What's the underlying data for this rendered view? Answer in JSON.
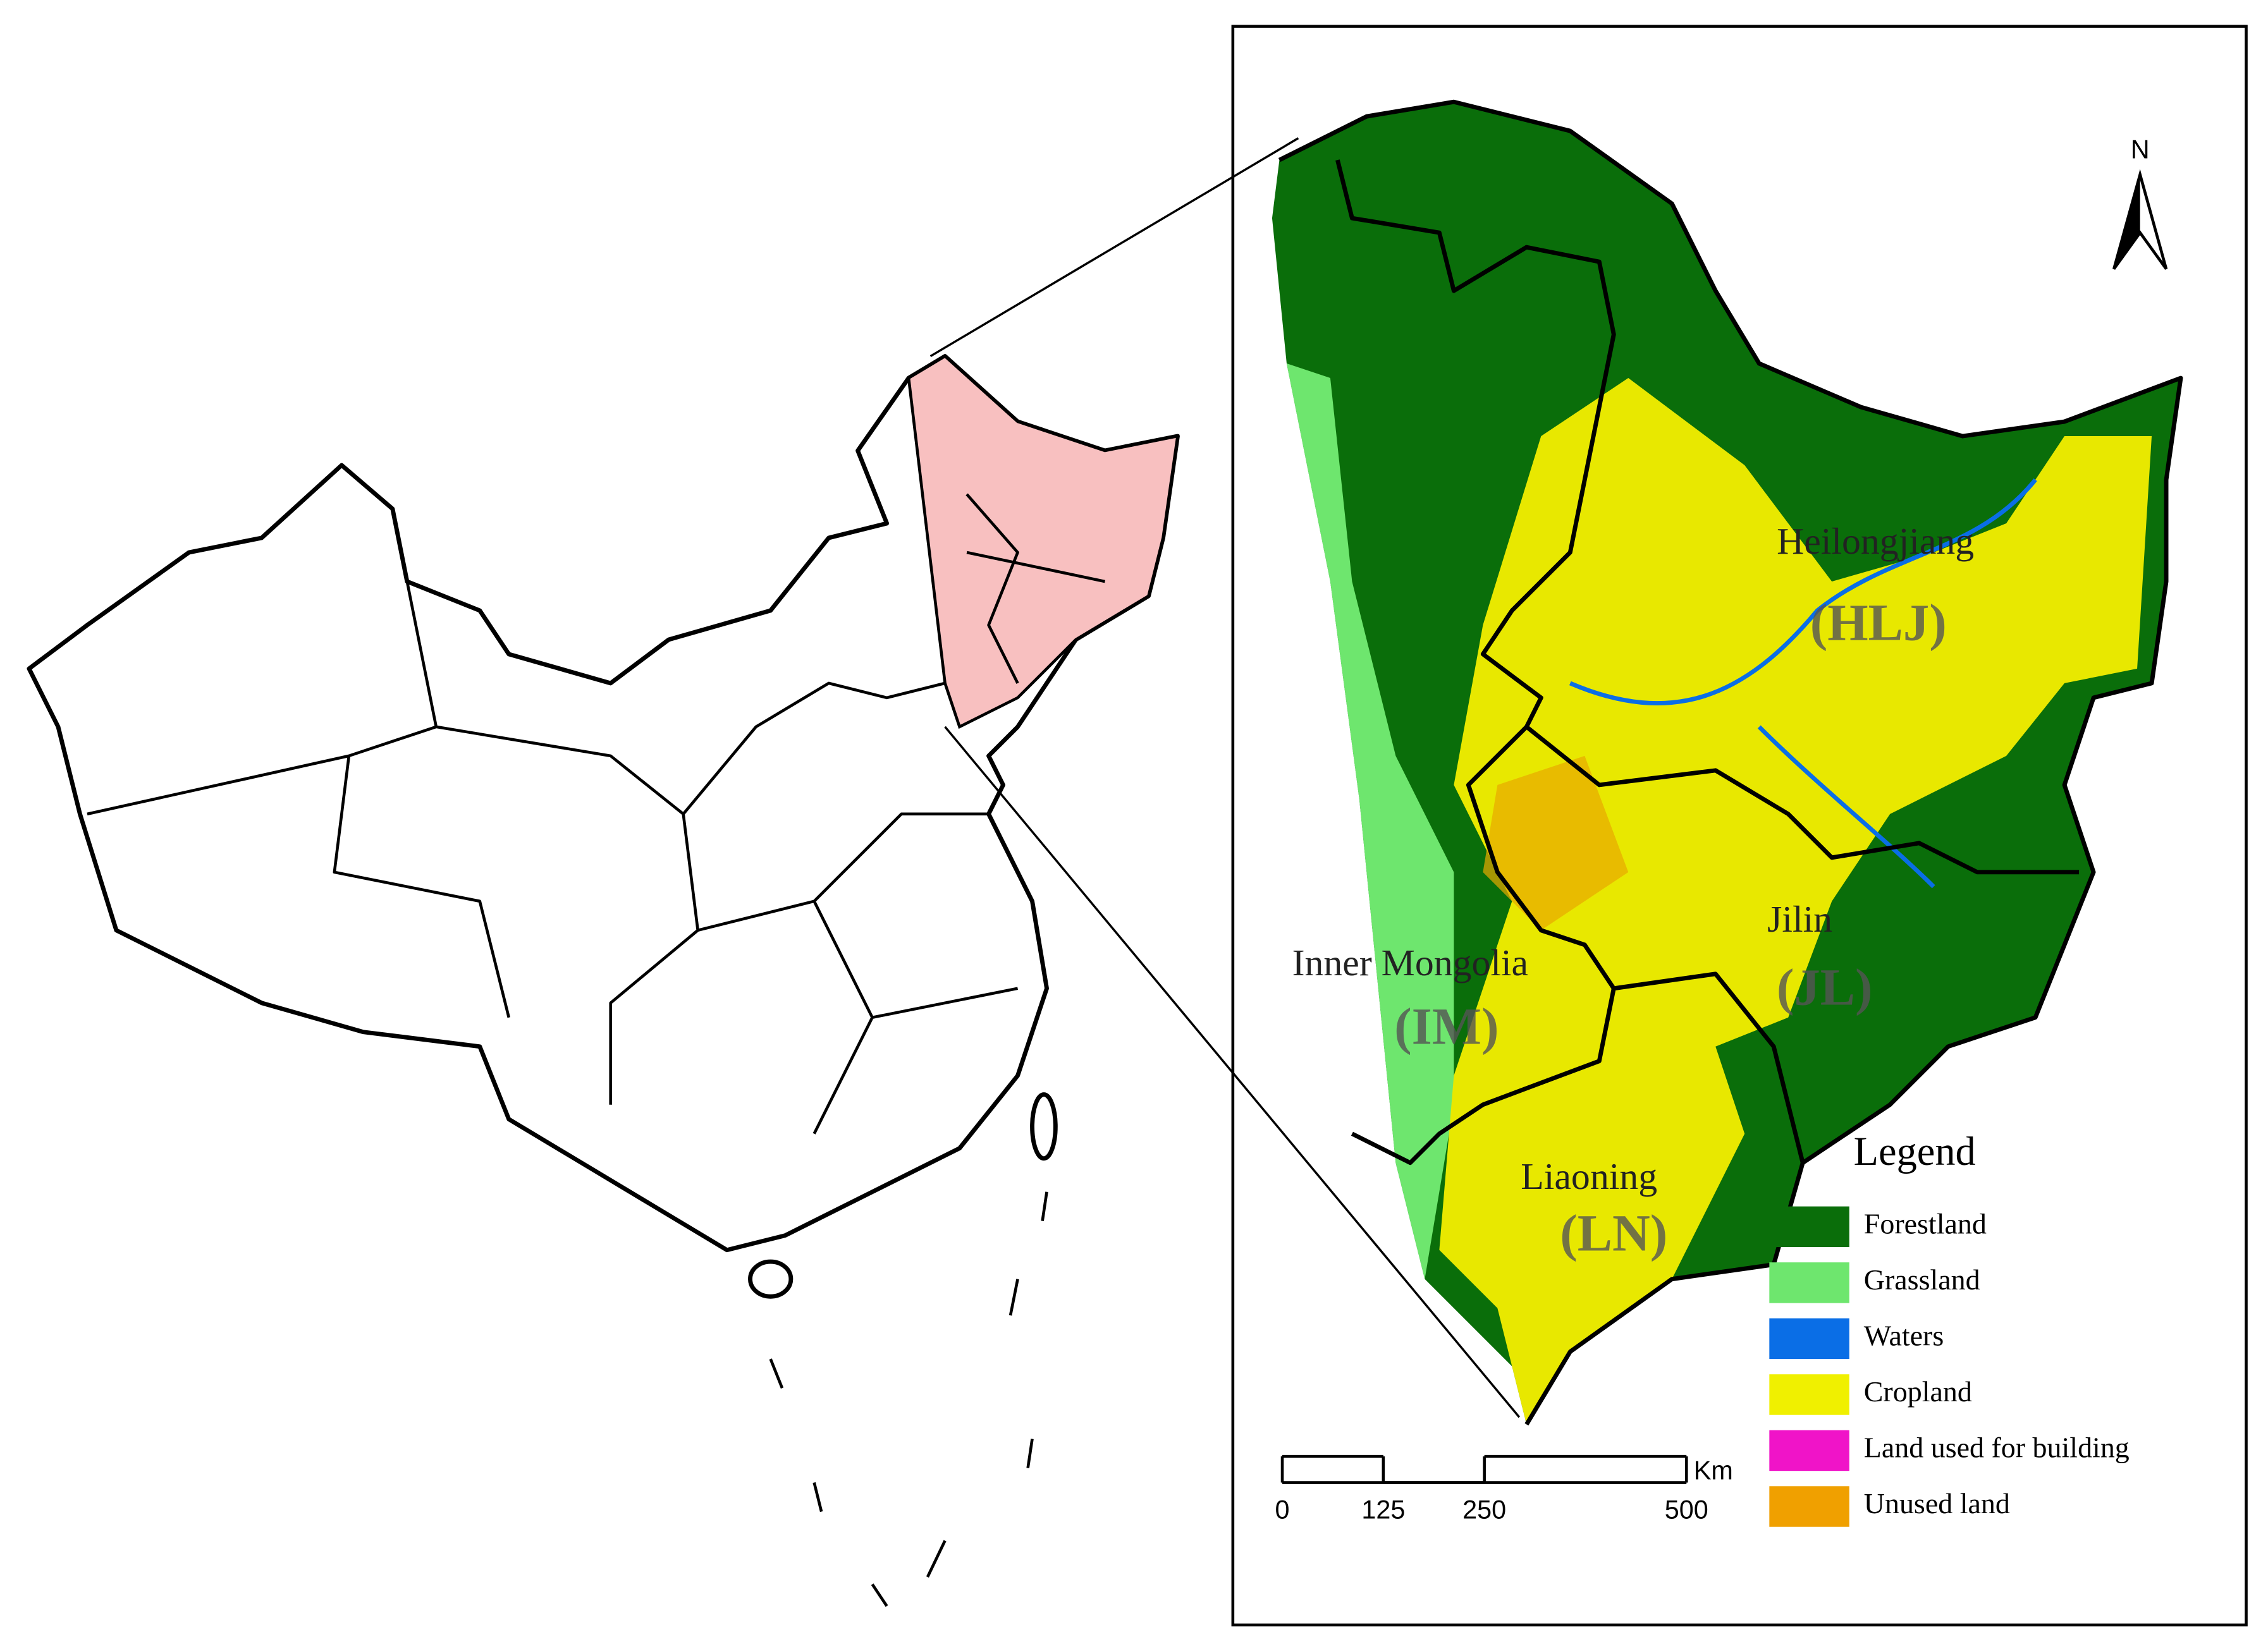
{
  "inset_labels": [
    {
      "text": "Heilongjiang",
      "abbr": "(HLJ)"
    },
    {
      "text": "Jilin",
      "abbr": "(JL)"
    },
    {
      "text": "Inner Mongolia",
      "abbr": "(IM)"
    },
    {
      "text": "Liaoning",
      "abbr": "(LN)"
    }
  ],
  "north": "N",
  "legend": {
    "title": "Legend",
    "items": [
      {
        "label": "Forestland",
        "color": "#0a6e0a"
      },
      {
        "label": "Grassland",
        "color": "#6ee66e"
      },
      {
        "label": "Waters",
        "color": "#0a6ee6"
      },
      {
        "label": "Cropland",
        "color": "#f0f000"
      },
      {
        "label": "Land used for building",
        "color": "#f014c8"
      },
      {
        "label": "Unused land",
        "color": "#f0a000"
      }
    ]
  },
  "scale_bar": {
    "unit": "Km",
    "ticks": [
      0,
      125,
      250,
      500
    ]
  }
}
